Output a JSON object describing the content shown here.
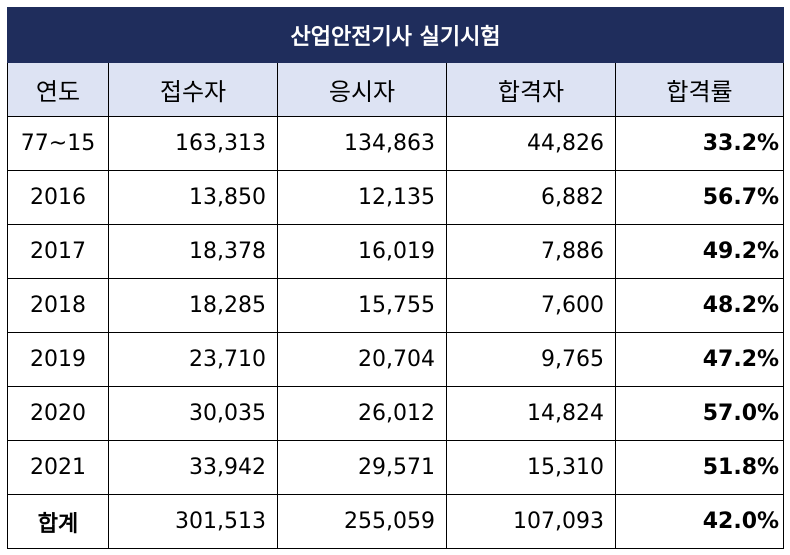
{
  "title": "산업안전기사 실기시험",
  "columns": [
    "연도",
    "접수자",
    "응시자",
    "합격자",
    "합격률"
  ],
  "rows": [
    [
      "77~15",
      "163,313",
      "134,863",
      "44,826",
      "33.2%"
    ],
    [
      "2016",
      "13,850",
      "12,135",
      "6,882",
      "56.7%"
    ],
    [
      "2017",
      "18,378",
      "16,019",
      "7,886",
      "49.2%"
    ],
    [
      "2018",
      "18,285",
      "15,755",
      "7,600",
      "48.2%"
    ],
    [
      "2019",
      "23,710",
      "20,704",
      "9,765",
      "47.2%"
    ],
    [
      "2020",
      "30,035",
      "26,012",
      "14,824",
      "57.0%"
    ],
    [
      "2021",
      "33,942",
      "29,571",
      "15,310",
      "51.8%"
    ]
  ],
  "total": [
    "합계",
    "301,513",
    "255,059",
    "107,093",
    "42.0%"
  ],
  "colors": {
    "title_bg": "#1f2d5c",
    "header_bg": "#dde3f3",
    "title_text": "#ffffff"
  }
}
